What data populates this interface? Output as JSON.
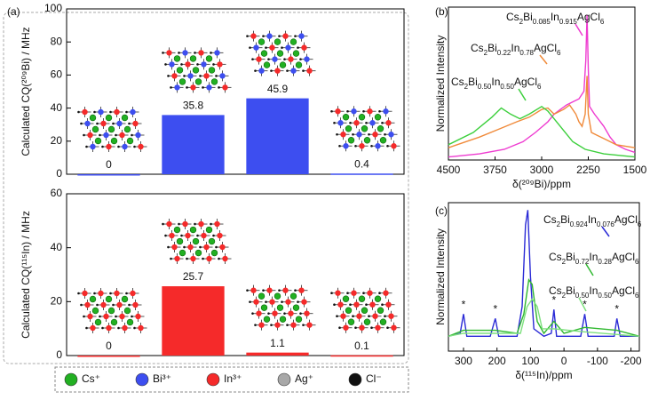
{
  "chart_data": [
    {
      "type": "bar",
      "panel_label": "(a)",
      "ylabel": "Calculated CQ(²⁰⁹Bi) / MHz",
      "categories": [
        null,
        null,
        null,
        null
      ],
      "values": [
        0,
        35.8,
        45.9,
        0.4
      ],
      "color": "#3d4ef0",
      "ylim": [
        0,
        100
      ],
      "yticks": [
        0,
        20,
        40,
        60,
        80,
        100
      ]
    },
    {
      "type": "bar",
      "ylabel": "Calculated CQ(¹¹⁵In) / MHz",
      "categories": [
        null,
        null,
        null,
        null
      ],
      "values": [
        0,
        25.7,
        1.1,
        0.1
      ],
      "color": "#f52a2a",
      "ylim": [
        0,
        60
      ],
      "yticks": [
        0,
        20,
        40,
        60
      ]
    },
    {
      "type": "line",
      "panel_label": "(b)",
      "ylabel": "Normalized Intensity",
      "xlabel": "δ(²⁰⁹Bi)/ppm",
      "xlim": [
        4500,
        1500
      ],
      "xticks": [
        4500,
        3750,
        3000,
        2250,
        1500
      ],
      "ylim": [
        0,
        1
      ],
      "series": [
        {
          "name": "Cs2Bi0.085In0.915AgCl6",
          "color": "#ee3bd0",
          "x": [
            4500,
            4000,
            3600,
            3300,
            3100,
            2900,
            2800,
            2700,
            2600,
            2500,
            2400,
            2320,
            2290,
            2270,
            2250,
            2230,
            2150,
            2000,
            1900,
            1800,
            1650,
            1500
          ],
          "values": [
            0.02,
            0.04,
            0.07,
            0.12,
            0.18,
            0.25,
            0.3,
            0.33,
            0.36,
            0.38,
            0.4,
            0.45,
            0.65,
            0.95,
            0.6,
            0.35,
            0.3,
            0.22,
            0.15,
            0.1,
            0.07,
            0.05
          ]
        },
        {
          "name": "Cs2Bi0.22In0.78AgCl6",
          "color": "#f08a3a",
          "x": [
            4500,
            4000,
            3700,
            3400,
            3200,
            3000,
            2900,
            2800,
            2650,
            2550,
            2450,
            2400,
            2350,
            2300,
            2270,
            2250,
            2200,
            2100,
            2000,
            1800,
            1500
          ],
          "values": [
            0.08,
            0.15,
            0.2,
            0.25,
            0.28,
            0.33,
            0.34,
            0.3,
            0.33,
            0.36,
            0.3,
            0.25,
            0.22,
            0.3,
            0.55,
            0.3,
            0.18,
            0.16,
            0.14,
            0.1,
            0.08
          ]
        },
        {
          "name": "Cs2Bi0.50In0.50AgCl6",
          "color": "#3ccf3c",
          "x": [
            4500,
            4100,
            3800,
            3650,
            3500,
            3350,
            3200,
            3000,
            2900,
            2700,
            2500,
            2300,
            2000,
            1500
          ],
          "values": [
            0.1,
            0.18,
            0.28,
            0.34,
            0.3,
            0.27,
            0.3,
            0.35,
            0.32,
            0.22,
            0.12,
            0.07,
            0.04,
            0.02
          ]
        }
      ]
    },
    {
      "type": "line",
      "panel_label": "(c)",
      "ylabel": "Normalized Intensity",
      "xlabel": "δ(¹¹⁵In)/ppm",
      "xlim": [
        345,
        -225
      ],
      "xticks": [
        300,
        200,
        100,
        0,
        -100,
        -200
      ],
      "ylim": [
        0,
        1
      ],
      "series": [
        {
          "name": "Cs2Bi0.924In0.076AgCl6",
          "color": "#2a2ad6",
          "x": [
            345,
            310,
            300,
            290,
            220,
            205,
            195,
            140,
            125,
            115,
            108,
            100,
            90,
            60,
            38,
            30,
            22,
            -50,
            -62,
            -72,
            -150,
            -158,
            -168,
            -225
          ],
          "values": [
            0.1,
            0.12,
            0.25,
            0.1,
            0.1,
            0.22,
            0.1,
            0.1,
            0.3,
            0.85,
            0.95,
            0.5,
            0.15,
            0.1,
            0.12,
            0.28,
            0.1,
            0.1,
            0.25,
            0.1,
            0.1,
            0.22,
            0.1,
            0.1
          ]
        },
        {
          "name": "Cs2Bi0.72In0.28AgCl6",
          "color": "#2fb82f",
          "x": [
            345,
            300,
            205,
            140,
            120,
            105,
            95,
            80,
            60,
            30,
            0,
            -62,
            -158,
            -225
          ],
          "values": [
            0.1,
            0.14,
            0.14,
            0.12,
            0.25,
            0.48,
            0.45,
            0.2,
            0.12,
            0.2,
            0.12,
            0.16,
            0.14,
            0.1
          ]
        },
        {
          "name": "Cs2Bi0.50In0.50AgCl6",
          "color": "#7ee07e",
          "x": [
            345,
            300,
            200,
            130,
            110,
            95,
            80,
            65,
            30,
            -60,
            -225
          ],
          "values": [
            0.1,
            0.12,
            0.12,
            0.12,
            0.3,
            0.35,
            0.3,
            0.15,
            0.15,
            0.13,
            0.1
          ]
        }
      ],
      "annotations": [
        {
          "text": "*",
          "x": 300,
          "y": 0.31
        },
        {
          "text": "*",
          "x": 205,
          "y": 0.28
        },
        {
          "text": "*",
          "x": 30,
          "y": 0.34
        },
        {
          "text": "*",
          "x": -62,
          "y": 0.31
        },
        {
          "text": "*",
          "x": -158,
          "y": 0.28
        }
      ]
    }
  ],
  "atom_legend": [
    {
      "label": "Cs⁺",
      "color": "#22b022"
    },
    {
      "label": "Bi³⁺",
      "color": "#3d4ef0"
    },
    {
      "label": "In³⁺",
      "color": "#f52a2a"
    },
    {
      "label": "Ag⁺",
      "color": "#a8a8a8"
    },
    {
      "label": "Cl⁻",
      "color": "#111111"
    }
  ]
}
